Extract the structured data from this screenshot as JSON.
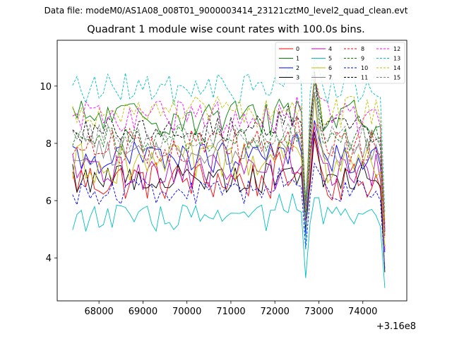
{
  "figure": {
    "suptitle": "Data file: modeM0/AS1A08_008T01_9000003414_23121cztM0_level2_quad_clean.evt"
  },
  "chart_data": {
    "type": "line",
    "title": "Quadrant 1 module wise count rates with 100.0s bins.",
    "xlabel": "",
    "ylabel": "",
    "x_offset_label": "+3.16e8",
    "xlim": [
      67050,
      75000
    ],
    "ylim": [
      2.5,
      11.6
    ],
    "x_ticks": [
      68000,
      69000,
      70000,
      71000,
      72000,
      73000,
      74000
    ],
    "x_tick_labels": [
      "68000",
      "69000",
      "70000",
      "71000",
      "72000",
      "73000",
      "74000"
    ],
    "y_ticks": [
      4,
      6,
      8,
      10
    ],
    "y_tick_labels": [
      "4",
      "6",
      "8",
      "10"
    ],
    "grid": false,
    "legend_position": "top-right",
    "x_segments": [
      {
        "start": 67400,
        "end": 72600,
        "step": 100
      },
      {
        "start": 72700,
        "end": 72900,
        "step": 100
      },
      {
        "start": 73000,
        "end": 74400,
        "step": 100
      },
      {
        "start": 74500,
        "end": 74500,
        "step": 100
      }
    ],
    "series": [
      {
        "name": "0",
        "color": "#ff0000",
        "dash": "solid",
        "base": 6.7,
        "amp": 0.45,
        "dip_level": 5.8,
        "peak": 8.2,
        "end": 4.4
      },
      {
        "name": "1",
        "color": "#008000",
        "dash": "solid",
        "base": 8.9,
        "amp": 0.4,
        "dip_level": 5.9,
        "peak": 10.2,
        "end": 5.0
      },
      {
        "name": "2",
        "color": "#0000ff",
        "dash": "solid",
        "base": 7.5,
        "amp": 0.35,
        "dip_level": 4.8,
        "peak": 8.8,
        "end": 4.2
      },
      {
        "name": "3",
        "color": "#000000",
        "dash": "solid",
        "base": 6.8,
        "amp": 0.35,
        "dip_level": 5.0,
        "peak": 8.4,
        "end": 3.5
      },
      {
        "name": "4",
        "color": "#bf00bf",
        "dash": "solid",
        "base": 7.0,
        "amp": 0.4,
        "dip_level": 5.3,
        "peak": 8.6,
        "end": 4.3
      },
      {
        "name": "5",
        "color": "#00bfbf",
        "dash": "solid",
        "base": 5.4,
        "amp": 0.3,
        "dip_level": 3.3,
        "peak": 6.1,
        "end": 2.95
      },
      {
        "name": "6",
        "color": "#bfbf00",
        "dash": "solid",
        "base": 7.3,
        "amp": 0.45,
        "dip_level": 5.5,
        "peak": 9.7,
        "end": 4.4
      },
      {
        "name": "7",
        "color": "#808080",
        "dash": "solid",
        "base": 7.7,
        "amp": 0.3,
        "dip_level": 5.4,
        "peak": 9.8,
        "end": 4.9
      },
      {
        "name": "8",
        "color": "#ff0000",
        "dash": "dashed",
        "base": 7.9,
        "amp": 0.4,
        "dip_level": 5.6,
        "peak": 8.7,
        "end": 4.7
      },
      {
        "name": "9",
        "color": "#008000",
        "dash": "dashed",
        "base": 8.1,
        "amp": 0.35,
        "dip_level": 5.6,
        "peak": 10.6,
        "end": 5.2
      },
      {
        "name": "10",
        "color": "#0000ff",
        "dash": "dashed",
        "base": 6.3,
        "amp": 0.3,
        "dip_level": 4.3,
        "peak": 7.3,
        "end": 3.6
      },
      {
        "name": "11",
        "color": "#000000",
        "dash": "dashed",
        "base": 8.5,
        "amp": 0.3,
        "dip_level": 5.9,
        "peak": 10.5,
        "end": 4.9
      },
      {
        "name": "12",
        "color": "#ff00ff",
        "dash": "dashed",
        "base": 8.9,
        "amp": 0.4,
        "dip_level": 5.7,
        "peak": 10.4,
        "end": 5.0
      },
      {
        "name": "13",
        "color": "#00bfbf",
        "dash": "dashed",
        "base": 9.9,
        "amp": 0.35,
        "dip_level": 4.3,
        "peak": 10.9,
        "end": 5.6
      },
      {
        "name": "14",
        "color": "#bfbf00",
        "dash": "dashed",
        "base": 9.1,
        "amp": 0.35,
        "dip_level": 5.7,
        "peak": 10.3,
        "end": 5.3
      },
      {
        "name": "15",
        "color": "#808080",
        "dash": "dashed",
        "base": 8.2,
        "amp": 0.3,
        "dip_level": 5.8,
        "peak": 10.1,
        "end": 4.8
      }
    ]
  }
}
